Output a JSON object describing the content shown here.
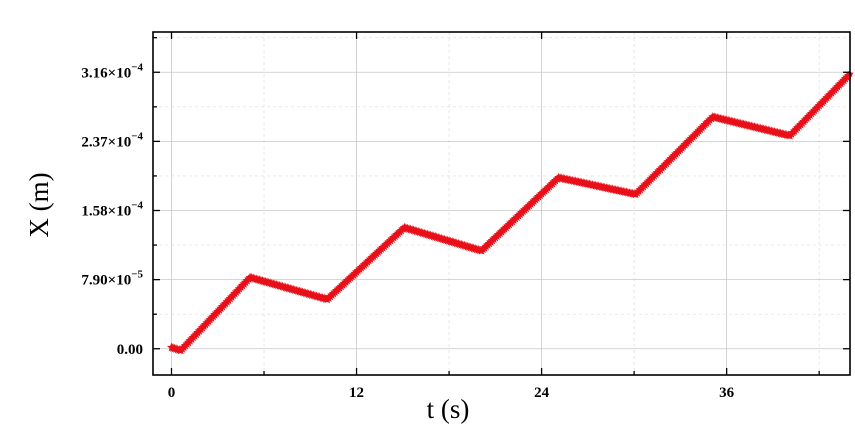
{
  "chart_data": {
    "type": "line",
    "title": "",
    "xlabel": "t (s)",
    "ylabel": "X (m)",
    "xlim": [
      -1.2,
      44
    ],
    "ylim": [
      -3e-05,
      0.000362
    ],
    "x_ticks": [
      0,
      12,
      24,
      36
    ],
    "x_tick_labels": [
      "0",
      "12",
      "24",
      "36"
    ],
    "y_ticks": [
      0,
      7.9e-05,
      0.000158,
      0.000237,
      0.000316
    ],
    "y_tick_labels": [
      {
        "mantissa": "0.00",
        "exponent": ""
      },
      {
        "mantissa": "7.90×10",
        "exponent": "−5"
      },
      {
        "mantissa": "1.58×10",
        "exponent": "−4"
      },
      {
        "mantissa": "2.37×10",
        "exponent": "−4"
      },
      {
        "mantissa": "3.16×10",
        "exponent": "−4"
      }
    ],
    "grid": true,
    "legend": "none",
    "series": [
      {
        "color": "#e8101a",
        "marker": "star",
        "points": [
          [
            0,
            1.5e-06
          ],
          [
            0.6,
            -2e-06
          ],
          [
            5.1,
            8.15e-05
          ],
          [
            10.1,
            5.65e-05
          ],
          [
            15.1,
            0.0001385
          ],
          [
            20.1,
            0.000112
          ],
          [
            25.1,
            0.0001955
          ],
          [
            30.1,
            0.0001765
          ],
          [
            35.1,
            0.000265
          ],
          [
            40.1,
            0.0002435
          ],
          [
            44,
            0.000314
          ]
        ]
      }
    ]
  }
}
